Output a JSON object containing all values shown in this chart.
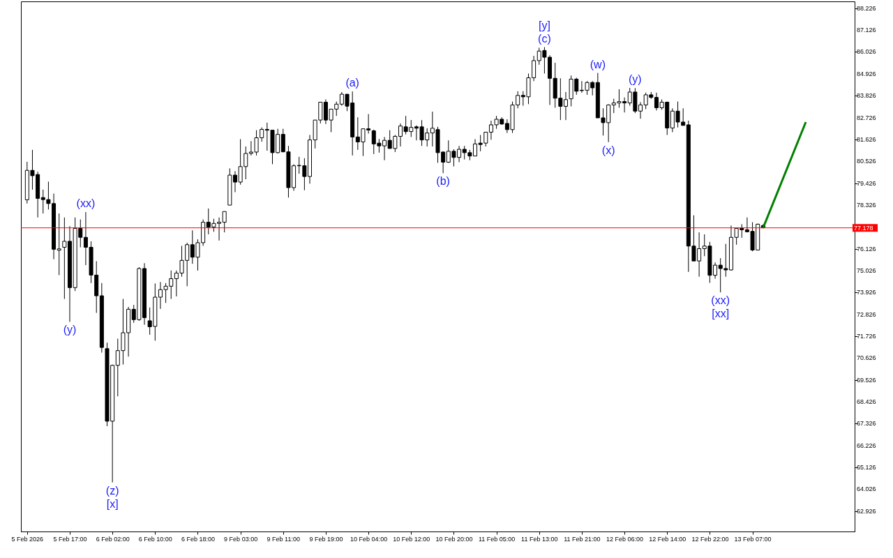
{
  "chart_data": {
    "type": "candlestick",
    "categories": [
      "5 Feb 2026",
      null,
      null,
      null,
      null,
      null,
      null,
      null,
      "5 Feb 17:00",
      null,
      null,
      null,
      null,
      null,
      null,
      null,
      "6 Feb 02:00",
      null,
      null,
      null,
      null,
      null,
      null,
      null,
      "6 Feb 10:00",
      null,
      null,
      null,
      null,
      null,
      null,
      null,
      "6 Feb 18:00",
      null,
      null,
      null,
      null,
      null,
      null,
      null,
      "9 Feb 03:00",
      null,
      null,
      null,
      null,
      null,
      null,
      null,
      "9 Feb 11:00",
      null,
      null,
      null,
      null,
      null,
      null,
      null,
      "9 Feb 19:00",
      null,
      null,
      null,
      null,
      null,
      null,
      null,
      "10 Feb 04:00",
      null,
      null,
      null,
      null,
      null,
      null,
      null,
      "10 Feb 12:00",
      null,
      null,
      null,
      null,
      null,
      null,
      null,
      "10 Feb 20:00",
      null,
      null,
      null,
      null,
      null,
      null,
      null,
      "11 Feb 05:00",
      null,
      null,
      null,
      null,
      null,
      null,
      null,
      "11 Feb 13:00",
      null,
      null,
      null,
      null,
      null,
      null,
      null,
      "11 Feb 21:00",
      null,
      null,
      null,
      null,
      null,
      null,
      null,
      "12 Feb 06:00",
      null,
      null,
      null,
      null,
      null,
      null,
      null,
      "12 Feb 14:00",
      null,
      null,
      null,
      null,
      null,
      null,
      null,
      "12 Feb 22:00",
      null,
      null,
      null,
      null,
      null,
      null,
      null,
      "13 Feb 07:00",
      null,
      null,
      null,
      null,
      null,
      null,
      null,
      null,
      null,
      null,
      null,
      null,
      null,
      null,
      null,
      null,
      null,
      null
    ],
    "ohlc": [
      [
        78.59,
        80.5,
        78.4,
        80.07
      ],
      [
        80.07,
        81.1,
        79.1,
        79.8
      ],
      [
        79.86,
        80.0,
        77.7,
        78.66
      ],
      [
        78.7,
        79.1,
        77.9,
        78.6
      ],
      [
        78.6,
        79.5,
        78.1,
        78.4
      ],
      [
        78.4,
        78.9,
        75.6,
        76.1
      ],
      [
        76.05,
        77.9,
        74.8,
        76.12
      ],
      [
        76.2,
        77.7,
        73.6,
        76.5
      ],
      [
        76.5,
        77.26,
        72.45,
        74.17
      ],
      [
        74.17,
        77.7,
        74.0,
        77.15
      ],
      [
        77.15,
        77.6,
        76.2,
        76.7
      ],
      [
        76.7,
        77.97,
        75.3,
        76.2
      ],
      [
        76.2,
        76.5,
        74.4,
        74.8
      ],
      [
        74.8,
        75.5,
        72.9,
        73.76
      ],
      [
        73.76,
        74.4,
        70.9,
        71.16
      ],
      [
        71.1,
        71.4,
        67.2,
        67.45
      ],
      [
        67.45,
        70.3,
        64.37,
        70.26
      ],
      [
        70.26,
        71.6,
        68.7,
        71.0
      ],
      [
        71.0,
        73.6,
        70.3,
        71.9
      ],
      [
        71.9,
        73.2,
        70.7,
        73.08
      ],
      [
        73.08,
        73.3,
        72.4,
        72.56
      ],
      [
        72.56,
        75.2,
        72.5,
        75.13
      ],
      [
        75.13,
        75.4,
        72.3,
        72.66
      ],
      [
        72.5,
        73.17,
        71.8,
        72.2
      ],
      [
        72.22,
        74.38,
        71.5,
        73.69
      ],
      [
        73.69,
        74.45,
        73.1,
        74.07
      ],
      [
        74.07,
        74.4,
        73.4,
        74.24
      ],
      [
        74.24,
        75.03,
        73.6,
        74.62
      ],
      [
        74.62,
        75.03,
        73.73,
        74.9
      ],
      [
        74.9,
        76.27,
        74.72,
        75.54
      ],
      [
        75.54,
        76.43,
        74.24,
        76.33
      ],
      [
        76.33,
        77.05,
        75.37,
        75.7
      ],
      [
        75.7,
        76.6,
        75.03,
        76.43
      ],
      [
        76.43,
        77.6,
        76.27,
        77.46
      ],
      [
        77.46,
        78.15,
        76.85,
        77.22
      ],
      [
        77.22,
        77.63,
        76.98,
        77.4
      ],
      [
        77.4,
        77.7,
        76.54,
        77.46
      ],
      [
        77.46,
        78.0,
        76.95,
        78.0
      ],
      [
        78.32,
        80.17,
        78.32,
        79.83
      ],
      [
        79.83,
        80.03,
        78.97,
        79.48
      ],
      [
        79.48,
        81.64,
        79.35,
        80.26
      ],
      [
        80.26,
        81.27,
        79.62,
        80.92
      ],
      [
        80.92,
        81.54,
        80.82,
        80.99
      ],
      [
        80.99,
        82.09,
        80.82,
        81.71
      ],
      [
        81.71,
        82.23,
        81.51,
        82.13
      ],
      [
        82.13,
        82.47,
        81.06,
        82.09
      ],
      [
        82.09,
        82.09,
        80.38,
        80.96
      ],
      [
        80.96,
        82.16,
        80.92,
        81.88
      ],
      [
        81.88,
        82.16,
        81.0,
        81.0
      ],
      [
        81.0,
        81.3,
        78.7,
        79.2
      ],
      [
        79.2,
        80.38,
        79.04,
        80.3
      ],
      [
        80.3,
        80.75,
        79.9,
        80.32
      ],
      [
        80.3,
        80.68,
        79.07,
        79.76
      ],
      [
        79.76,
        81.85,
        79.4,
        81.6
      ],
      [
        81.6,
        82.6,
        81.17,
        82.6
      ],
      [
        82.6,
        83.5,
        82.43,
        83.5
      ],
      [
        83.5,
        83.64,
        82.4,
        82.6
      ],
      [
        82.6,
        83.15,
        81.99,
        83.15
      ],
      [
        83.15,
        83.53,
        82.81,
        83.4
      ],
      [
        83.4,
        84.01,
        83.32,
        83.9
      ],
      [
        83.9,
        83.91,
        83.05,
        83.3
      ],
      [
        83.46,
        84.04,
        80.82,
        81.75
      ],
      [
        81.75,
        82.74,
        81.1,
        81.5
      ],
      [
        81.5,
        82.16,
        80.79,
        82.16
      ],
      [
        82.16,
        82.9,
        81.92,
        82.1
      ],
      [
        82.06,
        82.12,
        80.89,
        81.4
      ],
      [
        81.44,
        81.65,
        80.96,
        81.3
      ],
      [
        81.3,
        81.75,
        80.58,
        81.58
      ],
      [
        81.58,
        82.09,
        81.17,
        81.17
      ],
      [
        81.17,
        81.85,
        80.99,
        81.78
      ],
      [
        81.78,
        82.43,
        81.27,
        82.3
      ],
      [
        82.26,
        82.81,
        81.88,
        82.02
      ],
      [
        82.02,
        82.6,
        81.75,
        82.23
      ],
      [
        82.26,
        82.33,
        81.58,
        82.19
      ],
      [
        82.26,
        82.6,
        81.3,
        81.6
      ],
      [
        81.6,
        82.19,
        81.27,
        81.95
      ],
      [
        81.95,
        83.02,
        81.27,
        82.19
      ],
      [
        82.12,
        82.26,
        80.45,
        80.96
      ],
      [
        80.99,
        81.03,
        79.93,
        80.48
      ],
      [
        80.48,
        81.58,
        80.45,
        81.03
      ],
      [
        81.03,
        81.13,
        80.27,
        80.72
      ],
      [
        80.72,
        81.3,
        80.48,
        81.13
      ],
      [
        81.13,
        81.3,
        80.62,
        80.96
      ],
      [
        80.96,
        81.1,
        80.58,
        80.79
      ],
      [
        80.79,
        81.64,
        80.79,
        81.4
      ],
      [
        81.44,
        81.85,
        81.03,
        81.37
      ],
      [
        81.44,
        81.99,
        81.27,
        81.99
      ],
      [
        81.99,
        82.57,
        81.61,
        82.36
      ],
      [
        82.36,
        82.81,
        82.16,
        82.64
      ],
      [
        82.64,
        82.74,
        82.36,
        82.4
      ],
      [
        82.43,
        82.64,
        81.95,
        82.12
      ],
      [
        82.12,
        83.53,
        81.95,
        83.36
      ],
      [
        83.36,
        84.05,
        83.19,
        83.84
      ],
      [
        83.84,
        84.05,
        83.32,
        83.77
      ],
      [
        83.77,
        84.94,
        83.4,
        84.73
      ],
      [
        84.73,
        85.83,
        84.56,
        85.59
      ],
      [
        85.59,
        86.24,
        85.38,
        86.07
      ],
      [
        86.1,
        86.27,
        84.94,
        85.76
      ],
      [
        85.76,
        85.86,
        83.36,
        84.7
      ],
      [
        84.7,
        85.48,
        83.22,
        83.7
      ],
      [
        83.7,
        84.7,
        82.6,
        83.29
      ],
      [
        83.29,
        84.01,
        82.6,
        83.63
      ],
      [
        83.67,
        84.84,
        83.29,
        84.66
      ],
      [
        84.66,
        84.73,
        83.87,
        84.05
      ],
      [
        84.1,
        84.56,
        83.98,
        84.08
      ],
      [
        84.1,
        84.56,
        83.87,
        84.49
      ],
      [
        84.49,
        84.56,
        83.84,
        84.22
      ],
      [
        84.49,
        84.97,
        82.71,
        82.71
      ],
      [
        82.71,
        83.19,
        81.82,
        82.47
      ],
      [
        82.47,
        83.39,
        81.49,
        83.36
      ],
      [
        83.36,
        83.67,
        82.95,
        83.46
      ],
      [
        83.46,
        84.15,
        83.22,
        83.53
      ],
      [
        83.53,
        83.74,
        82.98,
        83.46
      ],
      [
        83.46,
        84.22,
        83.32,
        84.01
      ],
      [
        84.01,
        84.21,
        82.95,
        83.05
      ],
      [
        83.05,
        83.5,
        82.67,
        83.36
      ],
      [
        83.36,
        83.98,
        83.15,
        83.87
      ],
      [
        83.87,
        84.01,
        83.67,
        83.74
      ],
      [
        83.74,
        83.98,
        83.08,
        83.22
      ],
      [
        83.22,
        83.64,
        83.12,
        83.5
      ],
      [
        83.5,
        83.53,
        81.85,
        82.2
      ],
      [
        82.2,
        83.19,
        81.99,
        83.05
      ],
      [
        83.05,
        83.53,
        82.23,
        82.5
      ],
      [
        82.5,
        83.19,
        82.33,
        82.33
      ],
      [
        82.36,
        82.57,
        74.96,
        76.26
      ],
      [
        76.26,
        77.81,
        75.51,
        75.51
      ],
      [
        75.51,
        76.95,
        74.72,
        76.13
      ],
      [
        76.13,
        76.85,
        75.75,
        76.26
      ],
      [
        76.26,
        76.47,
        74.41,
        74.79
      ],
      [
        74.79,
        75.44,
        74.62,
        75.3
      ],
      [
        75.3,
        75.65,
        73.93,
        75.13
      ],
      [
        75.13,
        76.37,
        74.72,
        75.06
      ],
      [
        75.06,
        77.29,
        75.03,
        76.7
      ],
      [
        76.7,
        77.15,
        76.33,
        77.15
      ],
      [
        77.15,
        77.36,
        76.68,
        77.08
      ],
      [
        77.08,
        77.7,
        76.95,
        76.98
      ],
      [
        77.0,
        77.46,
        76.0,
        76.06
      ],
      [
        76.06,
        77.39,
        76.06,
        77.36
      ],
      [
        77.29,
        77.36,
        77.15,
        77.18
      ],
      null,
      null,
      null,
      null,
      null,
      null,
      null,
      null,
      null,
      null,
      null,
      null,
      null,
      null,
      null,
      null
    ],
    "series": [
      {
        "type": "line",
        "color": "#008000",
        "values": [
          null,
          null,
          null,
          null,
          null,
          null,
          null,
          null,
          null,
          null,
          null,
          null,
          null,
          null,
          null,
          null,
          null,
          null,
          null,
          null,
          null,
          null,
          null,
          null,
          null,
          null,
          null,
          null,
          null,
          null,
          null,
          null,
          null,
          null,
          null,
          null,
          null,
          null,
          null,
          null,
          null,
          null,
          null,
          null,
          null,
          null,
          null,
          null,
          null,
          null,
          null,
          null,
          null,
          null,
          null,
          null,
          null,
          null,
          null,
          null,
          null,
          null,
          null,
          null,
          null,
          null,
          null,
          null,
          null,
          null,
          null,
          null,
          null,
          null,
          null,
          null,
          null,
          null,
          null,
          null,
          null,
          null,
          null,
          null,
          null,
          null,
          null,
          null,
          null,
          null,
          null,
          null,
          null,
          null,
          null,
          null,
          null,
          null,
          null,
          null,
          null,
          null,
          null,
          null,
          null,
          null,
          null,
          null,
          null,
          null,
          null,
          null,
          null,
          null,
          null,
          null,
          null,
          null,
          null,
          null,
          null,
          null,
          null,
          null,
          null,
          null,
          null,
          null,
          null,
          null,
          null,
          null,
          null,
          null,
          null,
          null,
          null,
          null,
          77.18,
          null,
          null,
          null,
          null,
          null,
          null,
          null,
          82.5,
          null,
          null,
          null,
          null,
          null,
          null,
          null,
          null
        ]
      }
    ],
    "ylim": [
      61.9,
      88.57
    ],
    "yticks": [
      88.226,
      87.126,
      86.026,
      84.926,
      83.826,
      82.726,
      81.626,
      80.526,
      79.426,
      78.326,
      76.126,
      75.026,
      73.926,
      72.826,
      71.726,
      70.626,
      69.526,
      68.426,
      67.326,
      66.226,
      65.126,
      64.026,
      62.926
    ],
    "ref_lines": [
      {
        "axis": "y",
        "value": 77.178,
        "label": "77.178",
        "color": "#ff0000"
      }
    ],
    "annotations": [
      {
        "text": "(xx)",
        "y": 77.97
      },
      {
        "text": "(y)",
        "y": 72.45
      },
      {
        "text": "(z)",
        "y": 64.37
      },
      {
        "text": "[x]",
        "y": 64.37
      },
      {
        "text": "(a)",
        "y": 84.04
      },
      {
        "text": "(b)",
        "y": 79.93
      },
      {
        "text": "(c)",
        "y": 86.27
      },
      {
        "text": "[y]",
        "y": 86.27
      },
      {
        "text": "(w)",
        "y": 84.97
      },
      {
        "text": "(x)",
        "y": 81.49
      },
      {
        "text": "(y)",
        "y": 84.21
      },
      {
        "text": "(xx)",
        "y": 73.93
      },
      {
        "text": "[xx]",
        "y": 73.93
      }
    ]
  }
}
